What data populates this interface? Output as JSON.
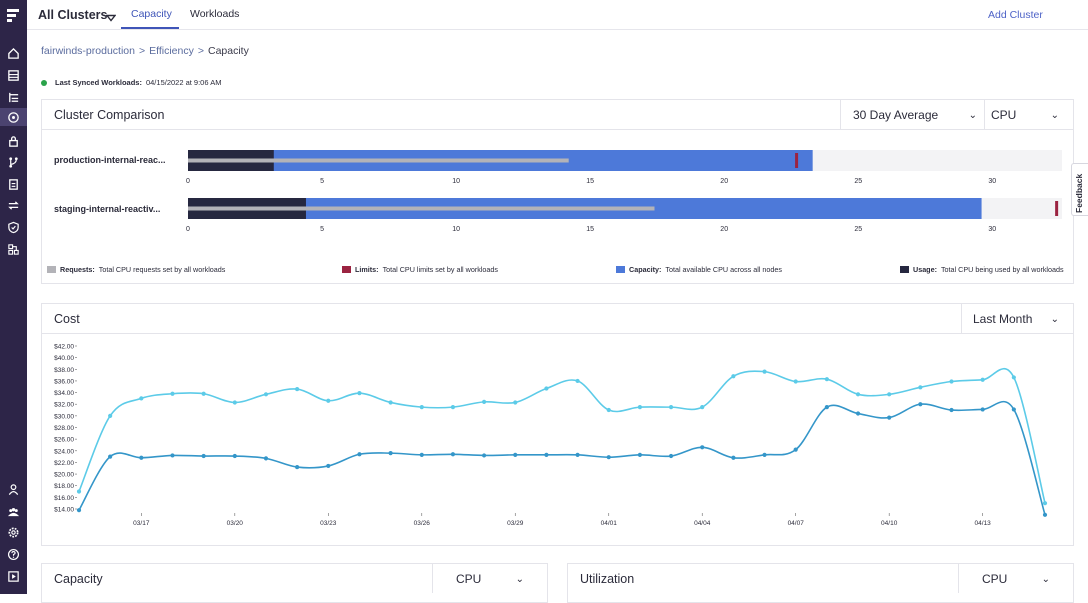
{
  "sidebar": {
    "logo": "fairwinds-logo",
    "items": [
      {
        "icon": "home-icon",
        "active": false
      },
      {
        "icon": "list-icon",
        "active": false
      },
      {
        "icon": "tree-list-icon",
        "active": false
      },
      {
        "icon": "cluster-icon",
        "active": true
      },
      {
        "icon": "security-icon",
        "active": false
      },
      {
        "icon": "branch-icon",
        "active": false
      },
      {
        "icon": "report-icon",
        "active": false
      },
      {
        "icon": "transfer-icon",
        "active": false
      },
      {
        "icon": "shield-icon",
        "active": false
      },
      {
        "icon": "network-icon",
        "active": false
      }
    ],
    "bottom_items": [
      {
        "icon": "user-icon"
      },
      {
        "icon": "team-icon"
      },
      {
        "icon": "settings-icon"
      },
      {
        "icon": "help-icon"
      },
      {
        "icon": "play-icon"
      }
    ],
    "bg_color": "#2d2548"
  },
  "header": {
    "cluster_selector": "All Clusters",
    "tabs": [
      {
        "label": "Capacity",
        "active": true
      },
      {
        "label": "Workloads",
        "active": false
      }
    ],
    "add_cluster_label": "Add Cluster",
    "accent_color": "#3f55b8"
  },
  "breadcrumb": {
    "items": [
      "fairwinds-production",
      "Efficiency",
      "Capacity"
    ],
    "separator": ">"
  },
  "sync": {
    "label": "Last Synced Workloads:",
    "value": "04/15/2022 at 9:06 AM",
    "status_color": "#2aa34a"
  },
  "cluster_comparison": {
    "title": "Cluster Comparison",
    "period_select": "30 Day Average",
    "resource_select": "CPU",
    "axis_ticks": [
      "0",
      "5",
      "10",
      "15",
      "20",
      "25",
      "30"
    ],
    "axis_max": 32.6,
    "rows": [
      {
        "name": "production-internal-reac...",
        "usage": 3.2,
        "requests": 14.2,
        "capacity": 23.3,
        "limits": 22.7
      },
      {
        "name": "staging-internal-reactiv...",
        "usage": 4.4,
        "requests": 17.4,
        "capacity": 29.6,
        "limits": 32.4
      }
    ],
    "colors": {
      "requests": "#b3b3b8",
      "limits": "#9b2341",
      "capacity": "#4d79d9",
      "usage": "#262840",
      "track": "#f3f3f5"
    },
    "legend": [
      {
        "key": "requests",
        "label": "Requests:",
        "desc": "Total CPU requests set by all workloads"
      },
      {
        "key": "limits",
        "label": "Limits:",
        "desc": "Total CPU limits set by all workloads"
      },
      {
        "key": "capacity",
        "label": "Capacity:",
        "desc": "Total available CPU across all nodes"
      },
      {
        "key": "usage",
        "label": "Usage:",
        "desc": "Total CPU being used by all workloads"
      }
    ]
  },
  "cost": {
    "title": "Cost",
    "period_select": "Last Month"
  },
  "chart_data": {
    "type": "line",
    "x": [
      "03/15",
      "03/16",
      "03/17",
      "03/18",
      "03/19",
      "03/20",
      "03/21",
      "03/22",
      "03/23",
      "03/24",
      "03/25",
      "03/26",
      "03/27",
      "03/28",
      "03/29",
      "03/30",
      "03/31",
      "04/01",
      "04/02",
      "04/03",
      "04/04",
      "04/05",
      "04/06",
      "04/07",
      "04/08",
      "04/09",
      "04/10",
      "04/11",
      "04/12",
      "04/13",
      "04/14",
      "04/15"
    ],
    "x_tick_labels": [
      "03/17",
      "03/20",
      "03/23",
      "03/26",
      "03/29",
      "04/01",
      "04/04",
      "04/07",
      "04/10",
      "04/13"
    ],
    "ylim": [
      14,
      42
    ],
    "y_ticks": [
      "$14.00",
      "$16.00",
      "$18.00",
      "$20.00",
      "$22.00",
      "$24.00",
      "$26.00",
      "$28.00",
      "$30.00",
      "$32.00",
      "$34.00",
      "$36.00",
      "$38.00",
      "$40.00",
      "$42.00"
    ],
    "series": [
      {
        "color": "#5ccbe8",
        "values": [
          17.0,
          30.0,
          33.0,
          33.8,
          33.8,
          32.3,
          33.7,
          34.6,
          32.6,
          33.9,
          32.3,
          31.5,
          31.5,
          32.4,
          32.3,
          34.7,
          36.0,
          31.0,
          31.5,
          31.5,
          31.5,
          36.8,
          37.6,
          35.9,
          36.3,
          33.7,
          33.7,
          34.9,
          35.9,
          36.2,
          36.6,
          15.0
        ]
      },
      {
        "color": "#3496c9",
        "values": [
          13.8,
          23.0,
          22.8,
          23.2,
          23.1,
          23.1,
          22.7,
          21.2,
          21.4,
          23.4,
          23.6,
          23.3,
          23.4,
          23.2,
          23.3,
          23.3,
          23.3,
          22.9,
          23.3,
          23.1,
          24.6,
          22.8,
          23.3,
          24.2,
          31.5,
          30.4,
          29.7,
          32.0,
          31.0,
          31.1,
          31.1,
          13.0
        ]
      }
    ]
  },
  "bottom_cards": [
    {
      "title": "Capacity",
      "select": "CPU"
    },
    {
      "title": "Utilization",
      "select": "CPU"
    }
  ],
  "feedback_label": "Feedback"
}
